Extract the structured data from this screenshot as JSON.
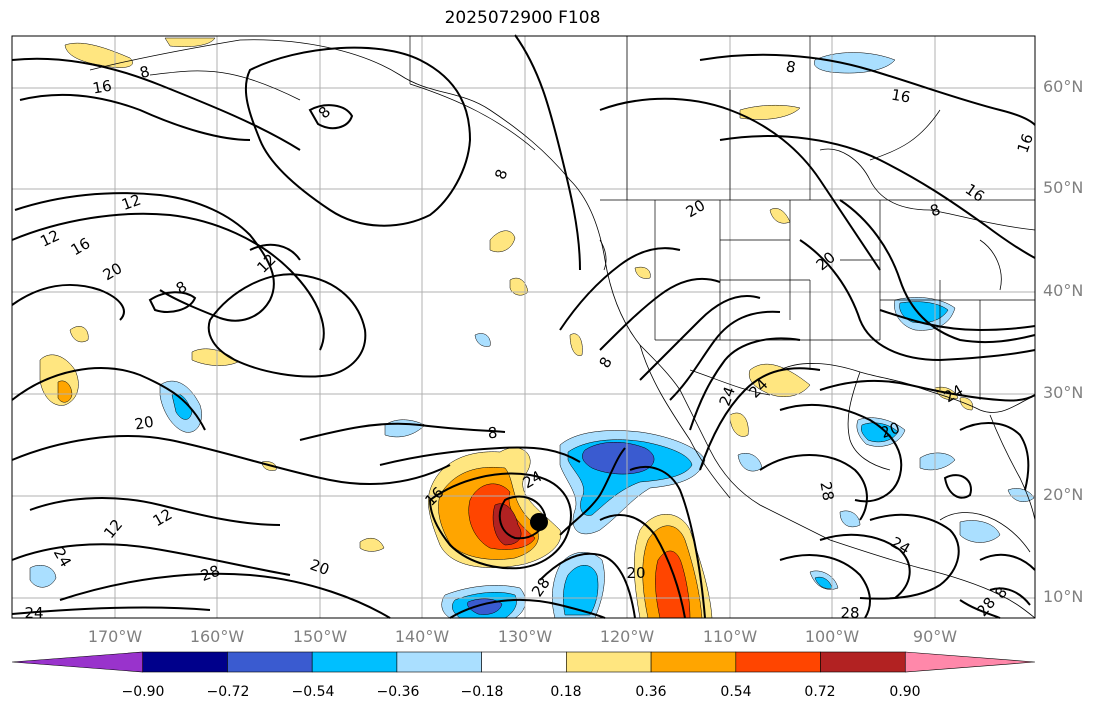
{
  "title": "2025072900 F108",
  "lat_labels": [
    "60°N",
    "50°N",
    "40°N",
    "30°N",
    "20°N",
    "10°N"
  ],
  "lon_labels": [
    "170°W",
    "160°W",
    "150°W",
    "140°W",
    "130°W",
    "120°W",
    "110°W",
    "100°W",
    "90°W"
  ],
  "contour_labels": [
    "8",
    "12",
    "16",
    "20",
    "24",
    "28"
  ],
  "colorbar": {
    "ticks": [
      "−0.90",
      "−0.72",
      "−0.54",
      "−0.36",
      "−0.18",
      "0.18",
      "0.36",
      "0.54",
      "0.72",
      "0.90"
    ],
    "colors": [
      "#9933cc",
      "#00008b",
      "#3a5bd0",
      "#00bfff",
      "#aadfff",
      "#ffffff",
      "#ffe680",
      "#ffa500",
      "#ff4500",
      "#b22222",
      "#ff88aa"
    ]
  }
}
